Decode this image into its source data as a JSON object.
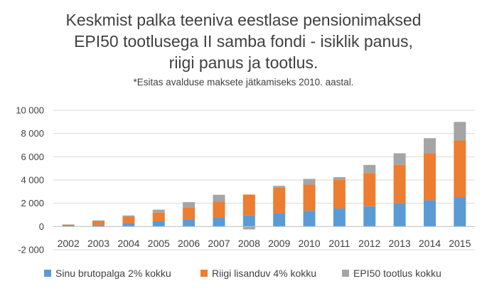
{
  "chart_data": {
    "type": "bar",
    "stacked": true,
    "title_lines": [
      "Keskmist palka teeniva eestlase pensionimaksed",
      "EPI50 tootlusega II samba fondi - isiklik panus,",
      "riigi panus ja tootlus."
    ],
    "subtitle": "*Esitas avalduse maksete jätkamiseks 2010. aastal.",
    "categories": [
      "2002",
      "2003",
      "2004",
      "2005",
      "2006",
      "2007",
      "2008",
      "2009",
      "2010",
      "2011",
      "2012",
      "2013",
      "2014",
      "2015"
    ],
    "series": [
      {
        "name": "Sinu brutopalga 2% kokku",
        "color": "#5b9bd5",
        "values": [
          50,
          150,
          300,
          450,
          600,
          780,
          950,
          1150,
          1350,
          1550,
          1750,
          2000,
          2250,
          2500
        ]
      },
      {
        "name": "Riigi lisanduv 4% kokku",
        "color": "#ed7d31",
        "values": [
          100,
          300,
          550,
          750,
          1050,
          1350,
          1800,
          2200,
          2250,
          2450,
          2850,
          3300,
          4050,
          4900
        ]
      },
      {
        "name": "EPI50 tootlus kokku",
        "color": "#a5a5a5",
        "values": [
          30,
          80,
          100,
          250,
          450,
          600,
          -250,
          150,
          500,
          250,
          700,
          1000,
          1300,
          1600
        ]
      }
    ],
    "y_ticks": [
      -2000,
      0,
      2000,
      4000,
      6000,
      8000,
      10000
    ],
    "y_tick_labels": [
      "-2 000",
      "0",
      "2 000",
      "4 000",
      "6 000",
      "8 000",
      "10 000"
    ],
    "ylim": [
      -2000,
      10000
    ],
    "grid": "horizontal",
    "legend_position": "bottom"
  }
}
